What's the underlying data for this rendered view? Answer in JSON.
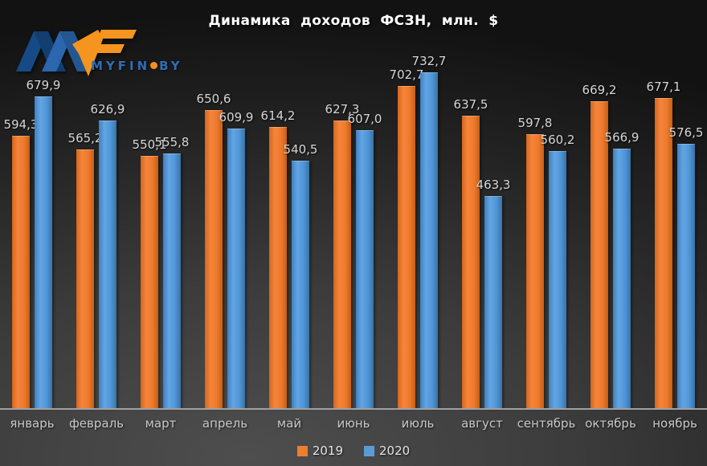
{
  "title": "Динамика доходов ФСЗН, млн. $",
  "logo": {
    "name": "myfin-logo",
    "text_main": "MYFIN",
    "text_suffix": "BY",
    "dot_color": "#f4911e",
    "navy": "#164a85",
    "blue": "#2b66ae",
    "orange": "#f5941f",
    "text_color": "#2e6db5"
  },
  "colors": {
    "series_2019": "#ED7D31",
    "series_2020": "#5B9BD5",
    "axis_line": "#a0a0a0",
    "value_label": "#d6d6d6",
    "category_label": "#c9c9c9",
    "title": "#ffffff",
    "background_light": "#4e4e4e",
    "background_dark": "#121212"
  },
  "chart_data": {
    "type": "bar",
    "title": "Динамика доходов ФСЗН, млн. $",
    "categories": [
      "январь",
      "февраль",
      "март",
      "апрель",
      "май",
      "июнь",
      "июль",
      "август",
      "сентябрь",
      "октябрь",
      "ноябрь"
    ],
    "series": [
      {
        "name": "2019",
        "color": "#ED7D31",
        "values": [
          594.3,
          565.2,
          550.1,
          650.6,
          614.2,
          627.3,
          702.7,
          637.5,
          597.8,
          669.2,
          677.1
        ],
        "labels": [
          "594,3",
          "565,2",
          "550,1",
          "650,6",
          "614,2",
          "627,3",
          "702,7",
          "637,5",
          "597,8",
          "669,2",
          "677,1"
        ]
      },
      {
        "name": "2020",
        "color": "#5B9BD5",
        "values": [
          679.9,
          626.9,
          555.8,
          609.9,
          540.5,
          607.0,
          732.7,
          463.3,
          560.2,
          566.9,
          576.5
        ],
        "labels": [
          "679,9",
          "626,9",
          "555,8",
          "609,9",
          "540,5",
          "607,0",
          "732,7",
          "463,3",
          "560,2",
          "566,9",
          "576,5"
        ]
      }
    ],
    "xlabel": "",
    "ylabel": "",
    "ylim": [
      0,
      890
    ],
    "grid": false,
    "value_labels": "outside-end",
    "decimal_separator": ",",
    "legend_position": "bottom-center"
  }
}
